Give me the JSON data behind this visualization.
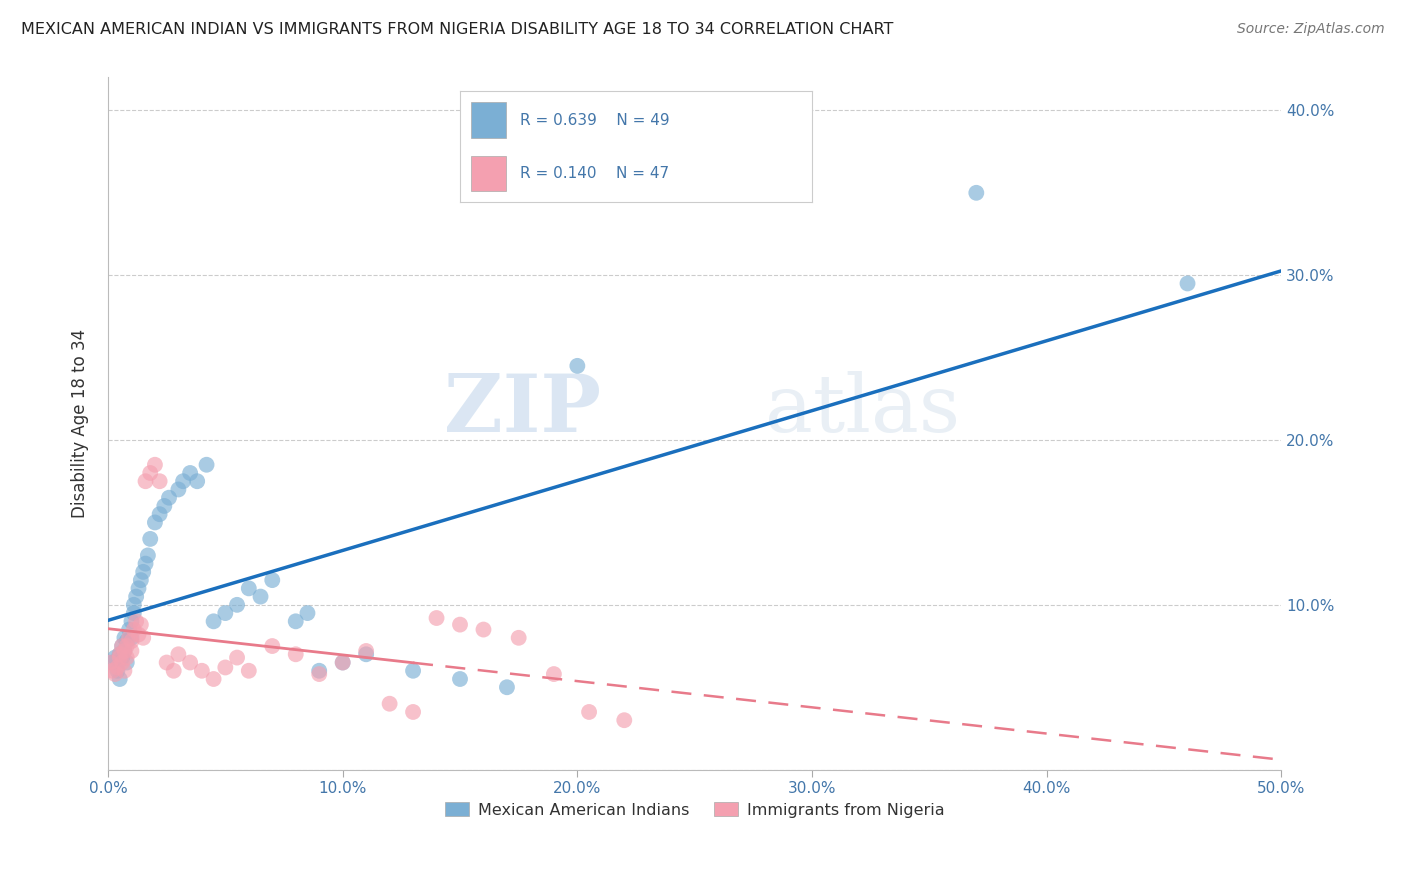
{
  "title": "MEXICAN AMERICAN INDIAN VS IMMIGRANTS FROM NIGERIA DISABILITY AGE 18 TO 34 CORRELATION CHART",
  "source": "Source: ZipAtlas.com",
  "ylabel": "Disability Age 18 to 34",
  "xlabel": "",
  "xlim": [
    0.0,
    0.5
  ],
  "ylim": [
    0.0,
    0.42
  ],
  "xticks": [
    0.0,
    0.1,
    0.2,
    0.3,
    0.4,
    0.5
  ],
  "yticks": [
    0.0,
    0.1,
    0.2,
    0.3,
    0.4
  ],
  "ytick_labels": [
    "",
    "10.0%",
    "20.0%",
    "30.0%",
    "40.0%"
  ],
  "xtick_labels": [
    "0.0%",
    "10.0%",
    "20.0%",
    "30.0%",
    "40.0%",
    "50.0%"
  ],
  "blue_R": 0.639,
  "blue_N": 49,
  "pink_R": 0.14,
  "pink_N": 47,
  "legend_label_blue": "Mexican American Indians",
  "legend_label_pink": "Immigrants from Nigeria",
  "blue_color": "#7bafd4",
  "pink_color": "#f4a0b0",
  "blue_line_color": "#1a6fbd",
  "pink_line_color": "#e87a8a",
  "watermark_zip": "ZIP",
  "watermark_atlas": "atlas",
  "background_color": "#ffffff",
  "grid_color": "#cccccc",
  "blue_x": [
    0.002,
    0.003,
    0.004,
    0.005,
    0.005,
    0.006,
    0.006,
    0.007,
    0.007,
    0.008,
    0.008,
    0.009,
    0.01,
    0.01,
    0.011,
    0.011,
    0.012,
    0.013,
    0.014,
    0.015,
    0.016,
    0.017,
    0.018,
    0.02,
    0.022,
    0.024,
    0.026,
    0.03,
    0.032,
    0.035,
    0.038,
    0.042,
    0.045,
    0.05,
    0.055,
    0.06,
    0.065,
    0.07,
    0.08,
    0.085,
    0.09,
    0.1,
    0.11,
    0.13,
    0.15,
    0.17,
    0.2,
    0.37,
    0.46
  ],
  "blue_y": [
    0.065,
    0.068,
    0.06,
    0.055,
    0.07,
    0.068,
    0.075,
    0.072,
    0.08,
    0.065,
    0.078,
    0.085,
    0.08,
    0.09,
    0.095,
    0.1,
    0.105,
    0.11,
    0.115,
    0.12,
    0.125,
    0.13,
    0.14,
    0.15,
    0.155,
    0.16,
    0.165,
    0.17,
    0.175,
    0.18,
    0.175,
    0.185,
    0.09,
    0.095,
    0.1,
    0.11,
    0.105,
    0.115,
    0.09,
    0.095,
    0.06,
    0.065,
    0.07,
    0.06,
    0.055,
    0.05,
    0.245,
    0.35,
    0.295
  ],
  "pink_x": [
    0.001,
    0.002,
    0.003,
    0.004,
    0.005,
    0.005,
    0.006,
    0.006,
    0.007,
    0.007,
    0.008,
    0.008,
    0.009,
    0.01,
    0.01,
    0.011,
    0.012,
    0.013,
    0.014,
    0.015,
    0.016,
    0.018,
    0.02,
    0.022,
    0.025,
    0.028,
    0.03,
    0.035,
    0.04,
    0.045,
    0.05,
    0.055,
    0.06,
    0.07,
    0.08,
    0.09,
    0.1,
    0.11,
    0.12,
    0.13,
    0.14,
    0.15,
    0.16,
    0.175,
    0.19,
    0.205,
    0.22
  ],
  "pink_y": [
    0.065,
    0.06,
    0.058,
    0.062,
    0.07,
    0.068,
    0.075,
    0.065,
    0.072,
    0.06,
    0.068,
    0.075,
    0.08,
    0.072,
    0.078,
    0.085,
    0.09,
    0.082,
    0.088,
    0.08,
    0.175,
    0.18,
    0.185,
    0.175,
    0.065,
    0.06,
    0.07,
    0.065,
    0.06,
    0.055,
    0.062,
    0.068,
    0.06,
    0.075,
    0.07,
    0.058,
    0.065,
    0.072,
    0.04,
    0.035,
    0.092,
    0.088,
    0.085,
    0.08,
    0.058,
    0.035,
    0.03
  ]
}
